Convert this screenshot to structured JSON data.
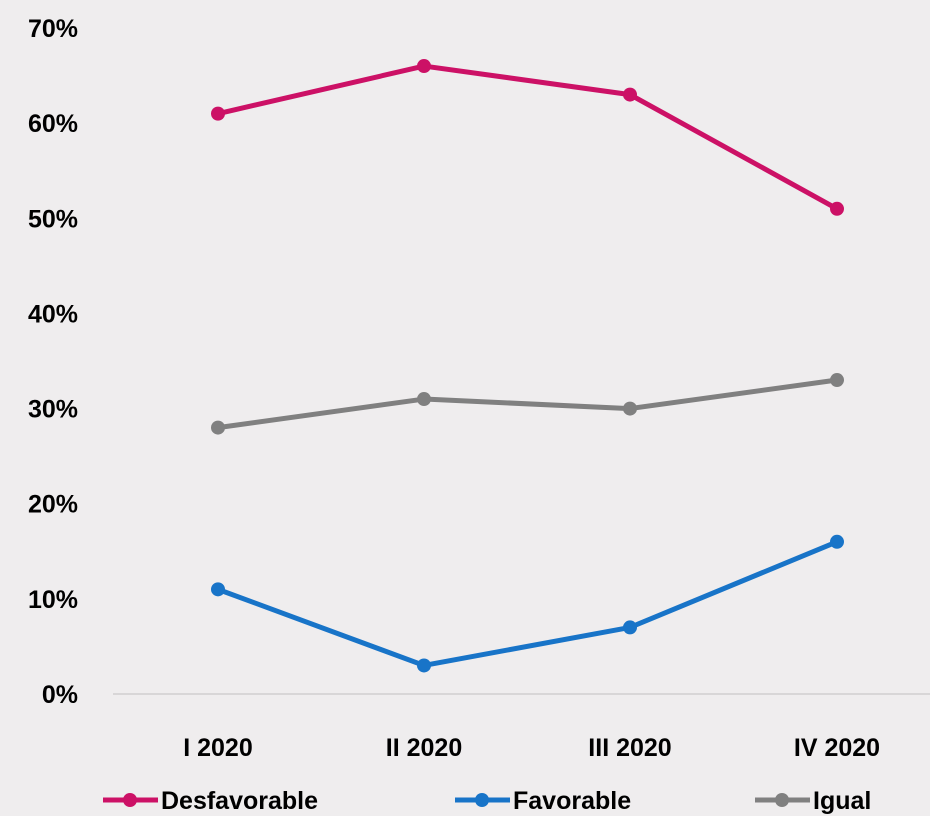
{
  "chart_data": {
    "type": "line",
    "title": "",
    "xlabel": "",
    "ylabel": "",
    "categories": [
      "I 2020",
      "II 2020",
      "III 2020",
      "IV 2020"
    ],
    "ylim": [
      0,
      70
    ],
    "y_ticks": [
      0,
      10,
      20,
      30,
      40,
      50,
      60,
      70
    ],
    "y_tick_labels": [
      "0%",
      "10%",
      "20%",
      "30%",
      "40%",
      "50%",
      "60%",
      "70%"
    ],
    "grid": false,
    "legend_position": "bottom",
    "series": [
      {
        "name": "Desfavorable",
        "color": "#cc1166",
        "values": [
          61,
          66,
          63,
          51
        ]
      },
      {
        "name": "Favorable",
        "color": "#1874c8",
        "values": [
          11,
          3,
          7,
          16
        ]
      },
      {
        "name": "Igual",
        "color": "#808080",
        "values": [
          28,
          31,
          30,
          33
        ]
      }
    ]
  }
}
